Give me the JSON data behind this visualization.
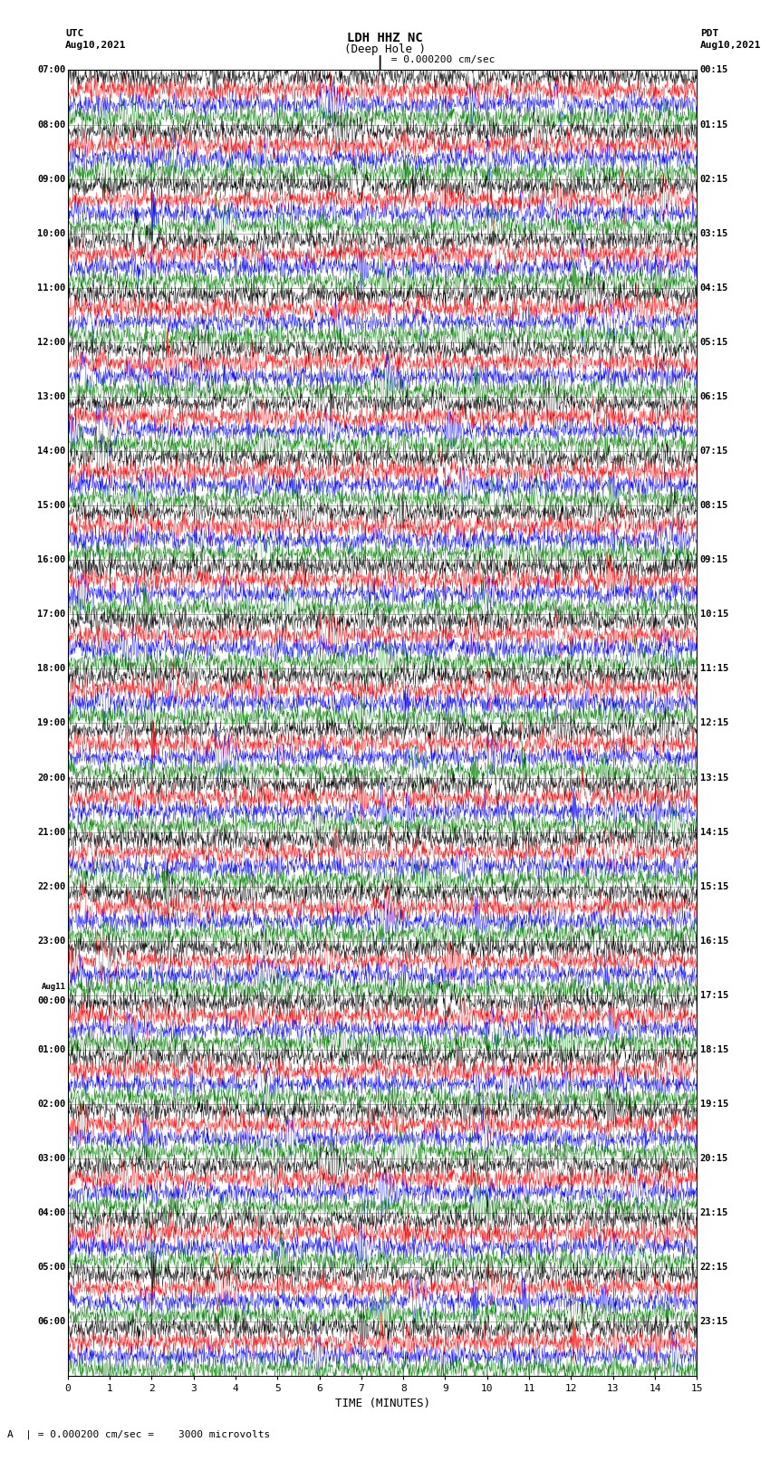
{
  "title_center": "LDH HHZ NC",
  "title_subtitle": "(Deep Hole )",
  "title_left": "UTC\nAug10,2021",
  "title_right": "PDT\nAug10,2021",
  "scale_label": "| = 0.000200 cm/sec",
  "bottom_label": "A  | = 0.000200 cm/sec =    3000 microvolts",
  "xlabel": "TIME (MINUTES)",
  "x_ticks": [
    0,
    1,
    2,
    3,
    4,
    5,
    6,
    7,
    8,
    9,
    10,
    11,
    12,
    13,
    14,
    15
  ],
  "left_times": [
    "07:00",
    "08:00",
    "09:00",
    "10:00",
    "11:00",
    "12:00",
    "13:00",
    "14:00",
    "15:00",
    "16:00",
    "17:00",
    "18:00",
    "19:00",
    "20:00",
    "21:00",
    "22:00",
    "23:00",
    "Aug11\n00:00",
    "01:00",
    "02:00",
    "03:00",
    "04:00",
    "05:00",
    "06:00"
  ],
  "right_times": [
    "00:15",
    "01:15",
    "02:15",
    "03:15",
    "04:15",
    "05:15",
    "06:15",
    "07:15",
    "08:15",
    "09:15",
    "10:15",
    "11:15",
    "12:15",
    "13:15",
    "14:15",
    "15:15",
    "16:15",
    "17:15",
    "18:15",
    "19:15",
    "20:15",
    "21:15",
    "22:15",
    "23:15"
  ],
  "colors": [
    "black",
    "red",
    "blue",
    "green"
  ],
  "n_rows": 24,
  "traces_per_row": 4,
  "background_color": "white",
  "grid_color": "#999999",
  "seed": 12345
}
